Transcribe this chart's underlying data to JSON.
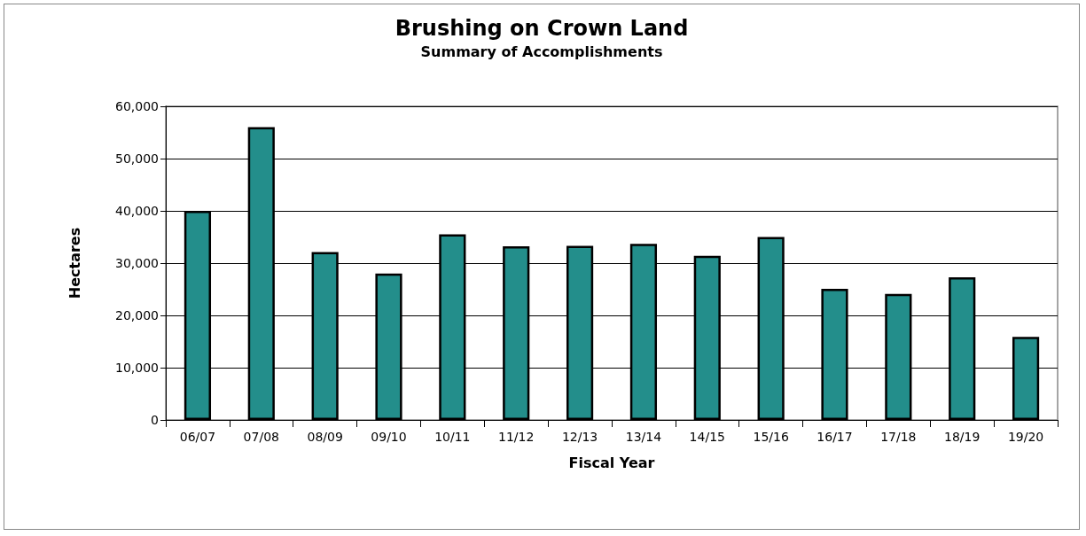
{
  "chart_data": {
    "type": "bar",
    "title": "Brushing on Crown Land",
    "subtitle": "Summary of Accomplishments",
    "xlabel": "Fiscal Year",
    "ylabel": "Hectares",
    "categories": [
      "06/07",
      "07/08",
      "08/09",
      "09/10",
      "10/11",
      "11/12",
      "12/13",
      "13/14",
      "14/15",
      "15/16",
      "16/17",
      "17/18",
      "18/19",
      "19/20"
    ],
    "values": [
      40000,
      56000,
      32100,
      28000,
      35500,
      33200,
      33300,
      33700,
      31400,
      35000,
      25100,
      24100,
      27300,
      15900
    ],
    "color": "#238e8b",
    "ylim": [
      0,
      60000
    ],
    "yticks": [
      {
        "value": 0,
        "label": "0"
      },
      {
        "value": 10000,
        "label": "10,000"
      },
      {
        "value": 20000,
        "label": "20,000"
      },
      {
        "value": 30000,
        "label": "30,000"
      },
      {
        "value": 40000,
        "label": "40,000"
      },
      {
        "value": 50000,
        "label": "50,000"
      },
      {
        "value": 60000,
        "label": "60,000"
      }
    ],
    "grid": "y"
  }
}
